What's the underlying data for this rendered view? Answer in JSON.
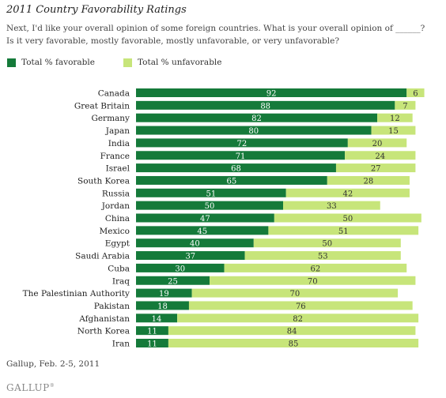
{
  "title": "2011 Country Favorability Ratings",
  "question_line1": "Next, I'd like your overall opinion of some foreign countries. What is your overall opinion of ______?",
  "question_line2": "Is it very favorable, mostly favorable, mostly unfavorable, or very unfavorable?",
  "legend": {
    "favorable_label": "Total % favorable",
    "unfavorable_label": "Total % unfavorable"
  },
  "colors": {
    "favorable": "#157a3a",
    "unfavorable": "#c7e57a"
  },
  "source": "Gallup, Feb. 2-5, 2011",
  "logo": "GALLUP",
  "chart_data": {
    "type": "bar",
    "orientation": "horizontal",
    "stacked": true,
    "categories": [
      "Canada",
      "Great Britain",
      "Germany",
      "Japan",
      "India",
      "France",
      "Israel",
      "South Korea",
      "Russia",
      "Jordan",
      "China",
      "Mexico",
      "Egypt",
      "Saudi Arabia",
      "Cuba",
      "Iraq",
      "The Palestinian Authority",
      "Pakistan",
      "Afghanistan",
      "North Korea",
      "Iran"
    ],
    "series": [
      {
        "name": "Total % favorable",
        "values": [
          92,
          88,
          82,
          80,
          72,
          71,
          68,
          65,
          51,
          50,
          47,
          45,
          40,
          37,
          30,
          25,
          19,
          18,
          14,
          11,
          11
        ]
      },
      {
        "name": "Total % unfavorable",
        "values": [
          6,
          7,
          12,
          15,
          20,
          24,
          27,
          28,
          42,
          33,
          50,
          51,
          50,
          53,
          62,
          70,
          70,
          76,
          82,
          84,
          85
        ]
      }
    ],
    "xlim": [
      0,
      100
    ],
    "data_labels": true,
    "grid": false,
    "legend_position": "top-left"
  }
}
